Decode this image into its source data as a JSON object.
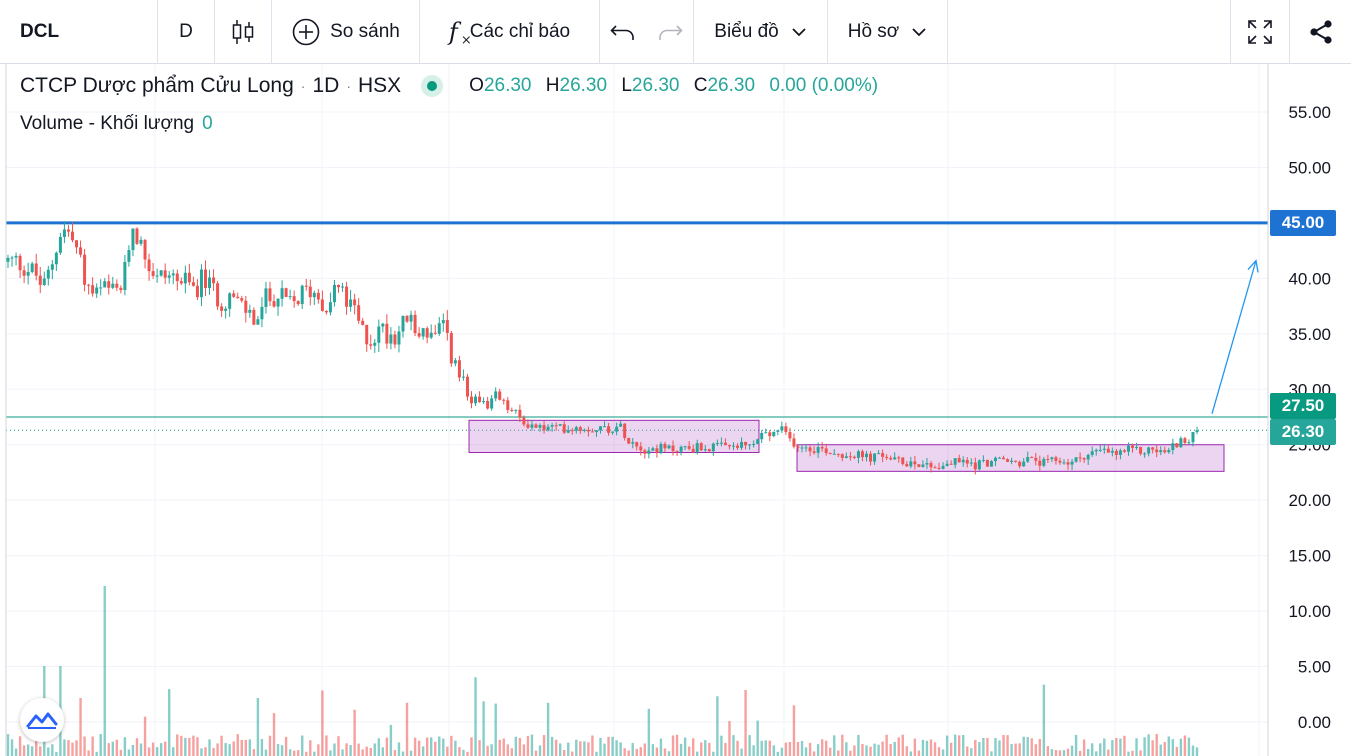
{
  "toolbar": {
    "symbol": "DCL",
    "interval": "D",
    "compare_label": "So sánh",
    "indicators_label": "Các chỉ báo",
    "chart_menu_label": "Biểu đồ",
    "profile_menu_label": "Hồ sơ",
    "fx_icon_text": "f"
  },
  "legend": {
    "title": "CTCP Dược phẩm Cửu Long",
    "interval": "1D",
    "exchange": "HSX",
    "o_label": "O",
    "o_value": "26.30",
    "h_label": "H",
    "h_value": "26.30",
    "l_label": "L",
    "l_value": "26.30",
    "c_label": "C",
    "c_value": "26.30",
    "change": "0.00 (0.00%)",
    "volume_label": "Volume - Khối lượng",
    "volume_value": "0"
  },
  "price_tags": {
    "resistance": "45.00",
    "level": "27.50",
    "last": "26.30"
  },
  "colors": {
    "up": "#26a69a",
    "down": "#ef5350",
    "horizontal_line": "#1e73d2",
    "level_line": "#089981",
    "box_fill": "rgba(186,104,200,0.28)",
    "box_stroke": "#9c27b0",
    "arrow": "#2196f3"
  },
  "chart_data": {
    "type": "candlestick",
    "y_axis_ticks": [
      "55.00",
      "50.00",
      "45.00",
      "40.00",
      "35.00",
      "30.00",
      "25.00",
      "20.00",
      "15.00",
      "10.00",
      "5.00",
      "0.00"
    ],
    "ylim": [
      0,
      58
    ],
    "horizontal_lines": [
      45.0,
      27.5
    ],
    "last_price": 26.3,
    "consolidation_boxes": [
      {
        "low": 24.3,
        "high": 27.2
      },
      {
        "low": 22.6,
        "high": 25.0
      }
    ],
    "arrow": {
      "from": 27.8,
      "to": 41.6
    },
    "series": [
      {
        "name": "price",
        "close_path": [
          41.5,
          41.5,
          41.0,
          40.5,
          39.0,
          41.5,
          44.5,
          44.0,
          42.0,
          39.0,
          38.5,
          39.0,
          38.5,
          39.5,
          45.0,
          43.0,
          41.0,
          40.0,
          40.5,
          40.0,
          39.5,
          39.0,
          40.0,
          39.0,
          38.0,
          38.5,
          37.5,
          37.0,
          36.0,
          38.0,
          38.5,
          38.0,
          37.5,
          38.5,
          39.0,
          38.5,
          37.5,
          39.5,
          38.0,
          37.0,
          35.0,
          34.5,
          35.5,
          35.0,
          35.2,
          36.5,
          35.0,
          35.5,
          34.5,
          35.5,
          33.0,
          31.0,
          28.5,
          29.5,
          28.0,
          29.5,
          28.5,
          28.0,
          27.0,
          26.8,
          26.5,
          26.5,
          26.5,
          26.5,
          26.6,
          26.5,
          26.5,
          26.5,
          26.5,
          26.6,
          25.5,
          25.0,
          24.5,
          24.7,
          24.6,
          24.6,
          24.7,
          24.7,
          24.8,
          24.7,
          24.8,
          24.7,
          24.9,
          24.8,
          25.0,
          26.0,
          25.8,
          26.5,
          25.5,
          25.0,
          24.8,
          24.7,
          24.6,
          24.3,
          24.2,
          24.1,
          24.0,
          23.8,
          23.9,
          24.0,
          23.5,
          23.4,
          23.5,
          23.3,
          23.2,
          23.0,
          23.3,
          23.5,
          23.4,
          23.2,
          23.4,
          23.5,
          23.6,
          23.4,
          23.4,
          23.6,
          23.5,
          23.2,
          23.6,
          23.5,
          23.3,
          24.0,
          24.2,
          24.4,
          24.3,
          24.1,
          24.5,
          24.4,
          24.4,
          24.6,
          24.3,
          24.5,
          25.5,
          25.0,
          26.3
        ]
      }
    ]
  }
}
